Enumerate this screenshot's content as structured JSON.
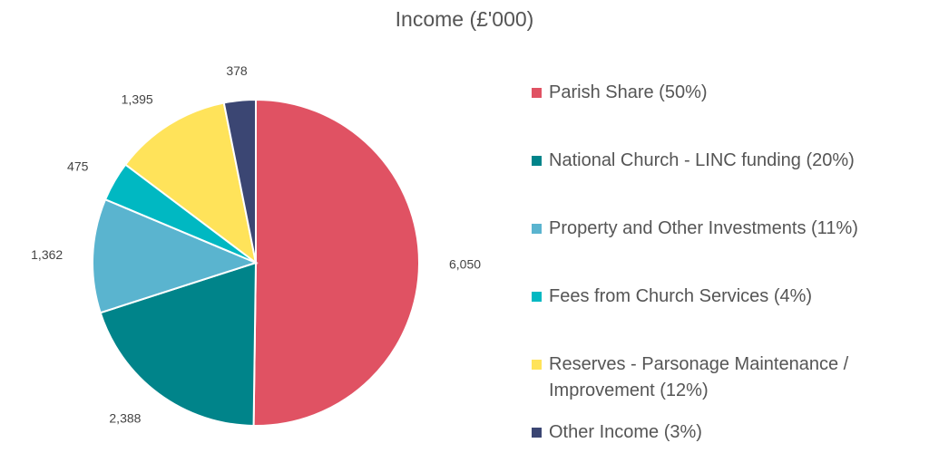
{
  "chart_data": {
    "type": "pie",
    "title": "Income (£'000)",
    "categories": [
      "Parish Share (50%)",
      "National Church - LINC funding (20%)",
      "Property and Other Investments (11%)",
      "Fees from Church Services (4%)",
      "Reserves - Parsonage Maintenance / Improvement (12%)",
      "Other Income (3%)"
    ],
    "values": [
      6050,
      2388,
      1362,
      475,
      1395,
      378
    ],
    "value_labels": [
      "6,050",
      "2,388",
      "1,362",
      "475",
      "1,395",
      "378"
    ],
    "colors": [
      "#e05263",
      "#00848a",
      "#5ab4cf",
      "#00b8c2",
      "#ffe35a",
      "#3b4673"
    ],
    "legend_placement": "right",
    "grid": false
  }
}
